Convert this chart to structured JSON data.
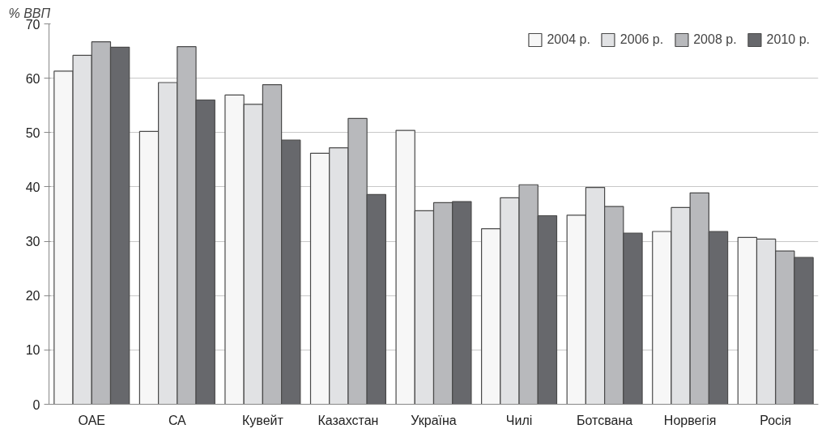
{
  "chart_data": {
    "type": "bar",
    "ylabel": "% ВВП",
    "categories": [
      "ОАЕ",
      "СА",
      "Кувейт",
      "Казахстан",
      "Україна",
      "Чилі",
      "Ботсвана",
      "Норвегія",
      "Росія"
    ],
    "series": [
      {
        "name": "2004 р.",
        "color": "#f7f7f7",
        "values": [
          61.3,
          50.2,
          56.9,
          46.2,
          50.4,
          32.3,
          34.8,
          31.8,
          30.7
        ]
      },
      {
        "name": "2006 р.",
        "color": "#e1e2e4",
        "values": [
          64.2,
          59.2,
          55.2,
          47.2,
          35.6,
          38.0,
          39.9,
          36.2,
          30.4
        ]
      },
      {
        "name": "2008 р.",
        "color": "#b8b9bc",
        "values": [
          66.7,
          65.8,
          58.8,
          52.6,
          37.1,
          40.4,
          36.4,
          38.9,
          28.2
        ]
      },
      {
        "name": "2010 р.",
        "color": "#67686c",
        "values": [
          65.7,
          56.0,
          48.6,
          38.6,
          37.3,
          34.7,
          31.5,
          31.8,
          27.0
        ]
      }
    ],
    "ylim": [
      0,
      70
    ],
    "yticks": [
      0,
      10,
      20,
      30,
      40,
      50,
      60,
      70
    ],
    "grid": "y",
    "legend": "top right"
  }
}
